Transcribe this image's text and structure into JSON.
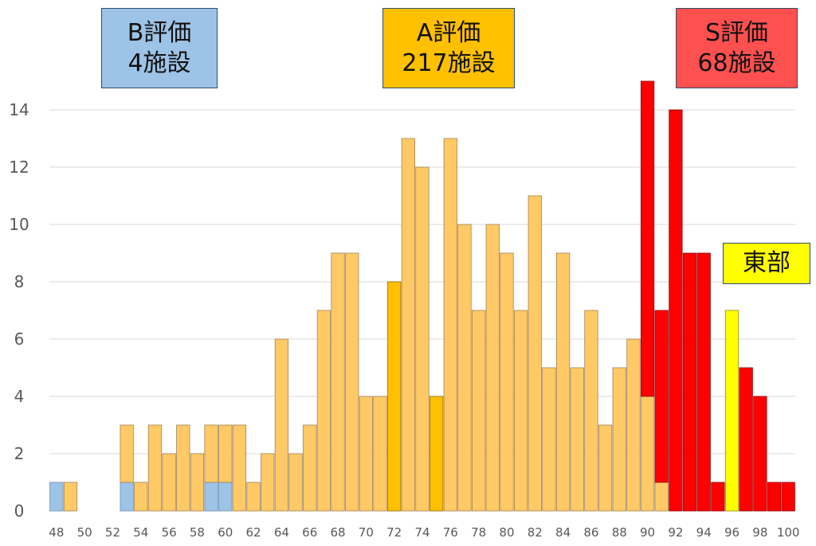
{
  "chart_data": {
    "type": "bar",
    "x": [
      48,
      49,
      50,
      51,
      52,
      53,
      54,
      55,
      56,
      57,
      58,
      59,
      60,
      61,
      62,
      63,
      64,
      65,
      66,
      67,
      68,
      69,
      70,
      71,
      72,
      73,
      74,
      75,
      76,
      77,
      78,
      79,
      80,
      81,
      82,
      83,
      84,
      85,
      86,
      87,
      88,
      89,
      90,
      91,
      92,
      93,
      94,
      95,
      96,
      97,
      98,
      99,
      100
    ],
    "xticks": [
      48,
      50,
      52,
      54,
      56,
      58,
      60,
      62,
      64,
      66,
      68,
      70,
      72,
      74,
      76,
      78,
      80,
      82,
      84,
      86,
      88,
      90,
      92,
      94,
      96,
      98,
      100
    ],
    "yticks": [
      0,
      2,
      4,
      6,
      8,
      10,
      12,
      14
    ],
    "ylim": [
      0,
      15.5
    ],
    "series": [
      {
        "key": "B",
        "color": "#9dc3e6",
        "values": [
          1,
          0,
          0,
          0,
          0,
          1,
          0,
          0,
          0,
          0,
          0,
          1,
          1,
          0,
          0,
          0,
          0,
          0,
          0,
          0,
          0,
          0,
          0,
          0,
          0,
          0,
          0,
          0,
          0,
          0,
          0,
          0,
          0,
          0,
          0,
          0,
          0,
          0,
          0,
          0,
          0,
          0,
          0,
          0,
          0,
          0,
          0,
          0,
          0,
          0,
          0,
          0,
          0
        ]
      },
      {
        "key": "A",
        "color": "#ffc966",
        "values": [
          0,
          1,
          0,
          0,
          0,
          2,
          1,
          3,
          2,
          3,
          2,
          2,
          2,
          3,
          1,
          2,
          6,
          2,
          3,
          7,
          9,
          9,
          4,
          4,
          0,
          13,
          12,
          0,
          13,
          10,
          7,
          10,
          9,
          7,
          11,
          5,
          9,
          5,
          7,
          3,
          5,
          6,
          4,
          1,
          0,
          0,
          0,
          0,
          0,
          0,
          0,
          0,
          0
        ]
      },
      {
        "key": "A-highlight",
        "color": "#ffc000",
        "values": [
          0,
          0,
          0,
          0,
          0,
          0,
          0,
          0,
          0,
          0,
          0,
          0,
          0,
          0,
          0,
          0,
          0,
          0,
          0,
          0,
          0,
          0,
          0,
          0,
          8,
          0,
          0,
          4,
          0,
          0,
          0,
          0,
          0,
          0,
          0,
          0,
          0,
          0,
          0,
          0,
          0,
          0,
          0,
          0,
          0,
          0,
          0,
          0,
          0,
          0,
          0,
          0,
          0
        ]
      },
      {
        "key": "S",
        "color": "#ff0000",
        "values": [
          0,
          0,
          0,
          0,
          0,
          0,
          0,
          0,
          0,
          0,
          0,
          0,
          0,
          0,
          0,
          0,
          0,
          0,
          0,
          0,
          0,
          0,
          0,
          0,
          0,
          0,
          0,
          0,
          0,
          0,
          0,
          0,
          0,
          0,
          0,
          0,
          0,
          0,
          0,
          0,
          0,
          0,
          11,
          6,
          14,
          9,
          9,
          1,
          0,
          5,
          4,
          1,
          1
        ]
      },
      {
        "key": "東部",
        "color": "#ffff00",
        "values": [
          0,
          0,
          0,
          0,
          0,
          0,
          0,
          0,
          0,
          0,
          0,
          0,
          0,
          0,
          0,
          0,
          0,
          0,
          0,
          0,
          0,
          0,
          0,
          0,
          0,
          0,
          0,
          0,
          0,
          0,
          0,
          0,
          0,
          0,
          0,
          0,
          0,
          0,
          0,
          0,
          0,
          0,
          0,
          0,
          0,
          0,
          0,
          0,
          7,
          0,
          0,
          0,
          0
        ]
      }
    ],
    "grid": true,
    "legend": {
      "position": "top"
    }
  },
  "annotations": {
    "b": {
      "line1": "B評価",
      "line2": "4施設",
      "color": "#9dc3e6"
    },
    "a": {
      "line1": "A評価",
      "line2": "217施設",
      "color": "#ffc000"
    },
    "s": {
      "line1": "S評価",
      "line2": "68施設",
      "color": "#ff5050"
    },
    "east": {
      "label": "東部",
      "color": "#ffff00"
    }
  }
}
